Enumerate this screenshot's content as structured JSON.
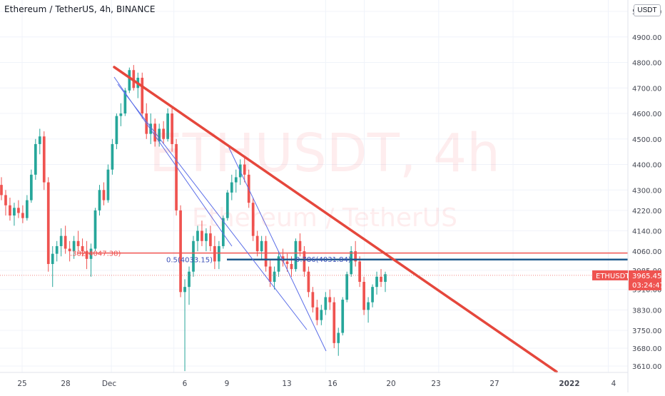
{
  "header": {
    "title": "Ethereum / TetherUS, 4h, BINANCE",
    "currency": "USDT"
  },
  "watermark": {
    "symbol": "ETHUSDT, 4h",
    "description": "Ethereum / TetherUS"
  },
  "colors": {
    "up": "#26a69a",
    "down": "#ef5350",
    "trendline": "#e5473c",
    "fib_line": "#5b6ee8",
    "level_red": "#ef5350",
    "level_blue": "#1e5a8c",
    "axis_text": "#434651",
    "grid": "#f0f3fa"
  },
  "chart_data": {
    "type": "candlestick",
    "symbol": "ETHUSDT",
    "interval": "4h",
    "exchange": "BINANCE",
    "y_axis": {
      "min": 3590,
      "max": 5030,
      "ticks": [
        5000,
        4900,
        4800,
        4700,
        4600,
        4500,
        4400,
        4300,
        4220,
        4140,
        4060,
        3985,
        3910,
        3830,
        3750,
        3680,
        3610
      ],
      "tick_labels": [
        "5000.00",
        "4900.00",
        "4800.00",
        "4700.00",
        "4600.00",
        "4500.00",
        "4400.00",
        "4300.00",
        "4220.00",
        "4140.00",
        "4060.00",
        "3985.00",
        "3910.00",
        "3830.00",
        "3750.00",
        "3680.00",
        "3610.00"
      ]
    },
    "x_axis": {
      "day_min": 0,
      "day_max": 29.5,
      "tick_days": [
        0,
        3,
        5,
        9,
        11,
        14,
        17,
        20,
        23,
        25,
        29,
        32,
        36
      ],
      "tick_labels": [
        "25",
        "28",
        "Dec",
        "6",
        "9",
        "13",
        "16",
        "20",
        "23",
        "27",
        "2022",
        "4",
        ""
      ]
    },
    "last_price": {
      "label": "ETHUSDT",
      "value": 3965.45,
      "value_text": "3965.45",
      "countdown": "03:24:47"
    },
    "levels": [
      {
        "name": "fib-0.382",
        "label": ".382(4047.38)",
        "price": 4047.38,
        "style": "red"
      },
      {
        "name": "fib-0.5",
        "label": "0.5(4033.15)",
        "price": 4033.15,
        "style": "blue"
      },
      {
        "name": "fib-0.786",
        "label": "0.786(4031.84)",
        "price": 4031.84,
        "style": "blue-thick"
      }
    ],
    "trendline": {
      "x1": 5.0,
      "y1": 4775,
      "x2": 26.2,
      "y2": 3600
    },
    "fib_lines": [
      {
        "x1": 5.0,
        "y1": 4710,
        "x2": 10.0,
        "y2": 4000
      },
      {
        "x1": 5.8,
        "y1": 4700,
        "x2": 12.8,
        "y2": 3750
      },
      {
        "x1": 10.3,
        "y1": 4420,
        "x2": 15.2,
        "y2": 3650
      }
    ],
    "candles": [
      [
        0,
        4320,
        4350,
        4260,
        4280
      ],
      [
        0.17,
        4280,
        4300,
        4200,
        4240
      ],
      [
        0.33,
        4240,
        4270,
        4180,
        4200
      ],
      [
        0.5,
        4200,
        4250,
        4160,
        4230
      ],
      [
        0.67,
        4230,
        4260,
        4190,
        4210
      ],
      [
        0.83,
        4210,
        4240,
        4170,
        4190
      ],
      [
        1.0,
        4190,
        4280,
        4180,
        4260
      ],
      [
        1.17,
        4260,
        4380,
        4250,
        4360
      ],
      [
        1.33,
        4360,
        4500,
        4340,
        4480
      ],
      [
        1.5,
        4480,
        4540,
        4440,
        4510
      ],
      [
        1.67,
        4510,
        4530,
        4300,
        4330
      ],
      [
        1.83,
        4330,
        4350,
        3980,
        4010
      ],
      [
        2.0,
        4010,
        4080,
        3920,
        4050
      ],
      [
        2.17,
        4050,
        4100,
        4020,
        4080
      ],
      [
        2.33,
        4080,
        4150,
        4040,
        4120
      ],
      [
        2.5,
        4120,
        4160,
        4050,
        4070
      ],
      [
        2.67,
        4070,
        4100,
        4020,
        4060
      ],
      [
        2.83,
        4060,
        4120,
        4030,
        4100
      ],
      [
        3.0,
        4100,
        4140,
        4060,
        4080
      ],
      [
        3.17,
        4080,
        4110,
        4040,
        4060
      ],
      [
        3.33,
        4060,
        4100,
        3990,
        4030
      ],
      [
        3.5,
        4030,
        4090,
        3960,
        4070
      ],
      [
        3.67,
        4070,
        4230,
        4060,
        4220
      ],
      [
        3.83,
        4220,
        4320,
        4200,
        4300
      ],
      [
        4.0,
        4300,
        4330,
        4240,
        4260
      ],
      [
        4.17,
        4260,
        4400,
        4250,
        4380
      ],
      [
        4.33,
        4380,
        4500,
        4360,
        4480
      ],
      [
        4.5,
        4480,
        4600,
        4460,
        4590
      ],
      [
        4.67,
        4590,
        4640,
        4550,
        4600
      ],
      [
        4.83,
        4600,
        4700,
        4590,
        4690
      ],
      [
        5.0,
        4690,
        4780,
        4680,
        4770
      ],
      [
        5.17,
        4770,
        4790,
        4690,
        4700
      ],
      [
        5.33,
        4700,
        4760,
        4660,
        4740
      ],
      [
        5.5,
        4740,
        4760,
        4580,
        4600
      ],
      [
        5.67,
        4600,
        4640,
        4500,
        4520
      ],
      [
        5.83,
        4520,
        4600,
        4480,
        4560
      ],
      [
        6.0,
        4560,
        4580,
        4470,
        4490
      ],
      [
        6.17,
        4490,
        4560,
        4470,
        4540
      ],
      [
        6.33,
        4540,
        4570,
        4480,
        4500
      ],
      [
        6.5,
        4500,
        4620,
        4490,
        4600
      ],
      [
        6.67,
        4600,
        4620,
        4450,
        4480
      ],
      [
        6.83,
        4480,
        4500,
        4200,
        4220
      ],
      [
        7.0,
        4220,
        4240,
        3880,
        3900
      ],
      [
        7.17,
        3900,
        3950,
        3590,
        3920
      ],
      [
        7.33,
        3920,
        4000,
        3850,
        3980
      ],
      [
        7.5,
        3980,
        4120,
        3960,
        4100
      ],
      [
        7.67,
        4100,
        4160,
        4060,
        4140
      ],
      [
        7.83,
        4140,
        4180,
        4080,
        4100
      ],
      [
        8.0,
        4100,
        4150,
        4060,
        4130
      ],
      [
        8.17,
        4130,
        4160,
        4060,
        4080
      ],
      [
        8.33,
        4080,
        4120,
        3990,
        4020
      ],
      [
        8.5,
        4020,
        4100,
        3990,
        4080
      ],
      [
        8.67,
        4080,
        4200,
        4070,
        4190
      ],
      [
        8.83,
        4190,
        4300,
        4180,
        4290
      ],
      [
        9.0,
        4290,
        4360,
        4260,
        4330
      ],
      [
        9.17,
        4330,
        4380,
        4290,
        4350
      ],
      [
        9.33,
        4350,
        4420,
        4320,
        4400
      ],
      [
        9.5,
        4400,
        4430,
        4330,
        4360
      ],
      [
        9.67,
        4360,
        4380,
        4230,
        4250
      ],
      [
        9.83,
        4250,
        4270,
        4100,
        4120
      ],
      [
        10.0,
        4120,
        4140,
        4040,
        4060
      ],
      [
        10.17,
        4060,
        4120,
        4030,
        4100
      ],
      [
        10.33,
        4100,
        4120,
        3980,
        4000
      ],
      [
        10.5,
        4000,
        4030,
        3920,
        3940
      ],
      [
        10.67,
        3940,
        4000,
        3910,
        3980
      ],
      [
        10.83,
        3980,
        4060,
        3960,
        4040
      ],
      [
        11.0,
        4040,
        4070,
        4000,
        4020
      ],
      [
        11.17,
        4020,
        4050,
        3980,
        4010
      ],
      [
        11.33,
        4010,
        4040,
        3960,
        3990
      ],
      [
        11.5,
        3990,
        4110,
        3980,
        4100
      ],
      [
        11.67,
        4100,
        4130,
        4040,
        4060
      ],
      [
        11.83,
        4060,
        4080,
        3960,
        3980
      ],
      [
        12.0,
        3980,
        4000,
        3880,
        3900
      ],
      [
        12.17,
        3900,
        3920,
        3820,
        3840
      ],
      [
        12.33,
        3840,
        3870,
        3770,
        3790
      ],
      [
        12.5,
        3790,
        3850,
        3770,
        3830
      ],
      [
        12.67,
        3830,
        3900,
        3810,
        3880
      ],
      [
        12.83,
        3880,
        3910,
        3830,
        3860
      ],
      [
        13.0,
        3860,
        3880,
        3680,
        3700
      ],
      [
        13.17,
        3700,
        3760,
        3650,
        3740
      ],
      [
        13.33,
        3740,
        3880,
        3730,
        3870
      ],
      [
        13.5,
        3870,
        3980,
        3860,
        3970
      ],
      [
        13.67,
        3970,
        4080,
        3960,
        4060
      ],
      [
        13.83,
        4060,
        4100,
        4000,
        4020
      ],
      [
        14.0,
        4020,
        4040,
        3920,
        3940
      ],
      [
        14.17,
        3940,
        3960,
        3810,
        3830
      ],
      [
        14.33,
        3830,
        3880,
        3780,
        3860
      ],
      [
        14.5,
        3860,
        3930,
        3840,
        3920
      ],
      [
        14.67,
        3920,
        3980,
        3890,
        3960
      ],
      [
        14.83,
        3960,
        3990,
        3920,
        3940
      ],
      [
        15.0,
        3940,
        3980,
        3900,
        3970
      ]
    ]
  }
}
